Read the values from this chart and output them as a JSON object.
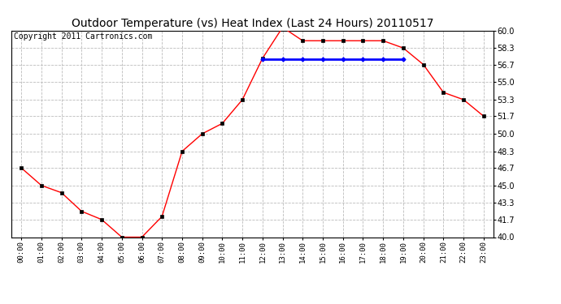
{
  "title": "Outdoor Temperature (vs) Heat Index (Last 24 Hours) 20110517",
  "copyright": "Copyright 2011 Cartronics.com",
  "hours": [
    "00:00",
    "01:00",
    "02:00",
    "03:00",
    "04:00",
    "05:00",
    "06:00",
    "07:00",
    "08:00",
    "09:00",
    "10:00",
    "11:00",
    "12:00",
    "13:00",
    "14:00",
    "15:00",
    "16:00",
    "17:00",
    "18:00",
    "19:00",
    "20:00",
    "21:00",
    "22:00",
    "23:00"
  ],
  "temp_values": [
    46.7,
    45.0,
    44.3,
    42.5,
    41.7,
    40.0,
    40.0,
    42.0,
    48.3,
    50.0,
    51.0,
    53.3,
    57.3,
    60.3,
    59.0,
    59.0,
    59.0,
    59.0,
    59.0,
    58.3,
    56.7,
    54.0,
    53.3,
    51.7
  ],
  "heat_values": [
    null,
    null,
    null,
    null,
    null,
    null,
    null,
    null,
    null,
    null,
    null,
    null,
    57.2,
    57.2,
    57.2,
    57.2,
    57.2,
    57.2,
    57.2,
    57.2,
    null,
    null,
    null,
    null
  ],
  "temp_color": "#ff0000",
  "heat_color": "#0000ff",
  "bg_color": "#ffffff",
  "plot_bg_color": "#ffffff",
  "grid_color": "#bbbbbb",
  "title_fontsize": 10,
  "copyright_fontsize": 7,
  "ylim_min": 40.0,
  "ylim_max": 60.0,
  "ytick_values": [
    40.0,
    41.7,
    43.3,
    45.0,
    46.7,
    48.3,
    50.0,
    51.7,
    53.3,
    55.0,
    56.7,
    58.3,
    60.0
  ]
}
